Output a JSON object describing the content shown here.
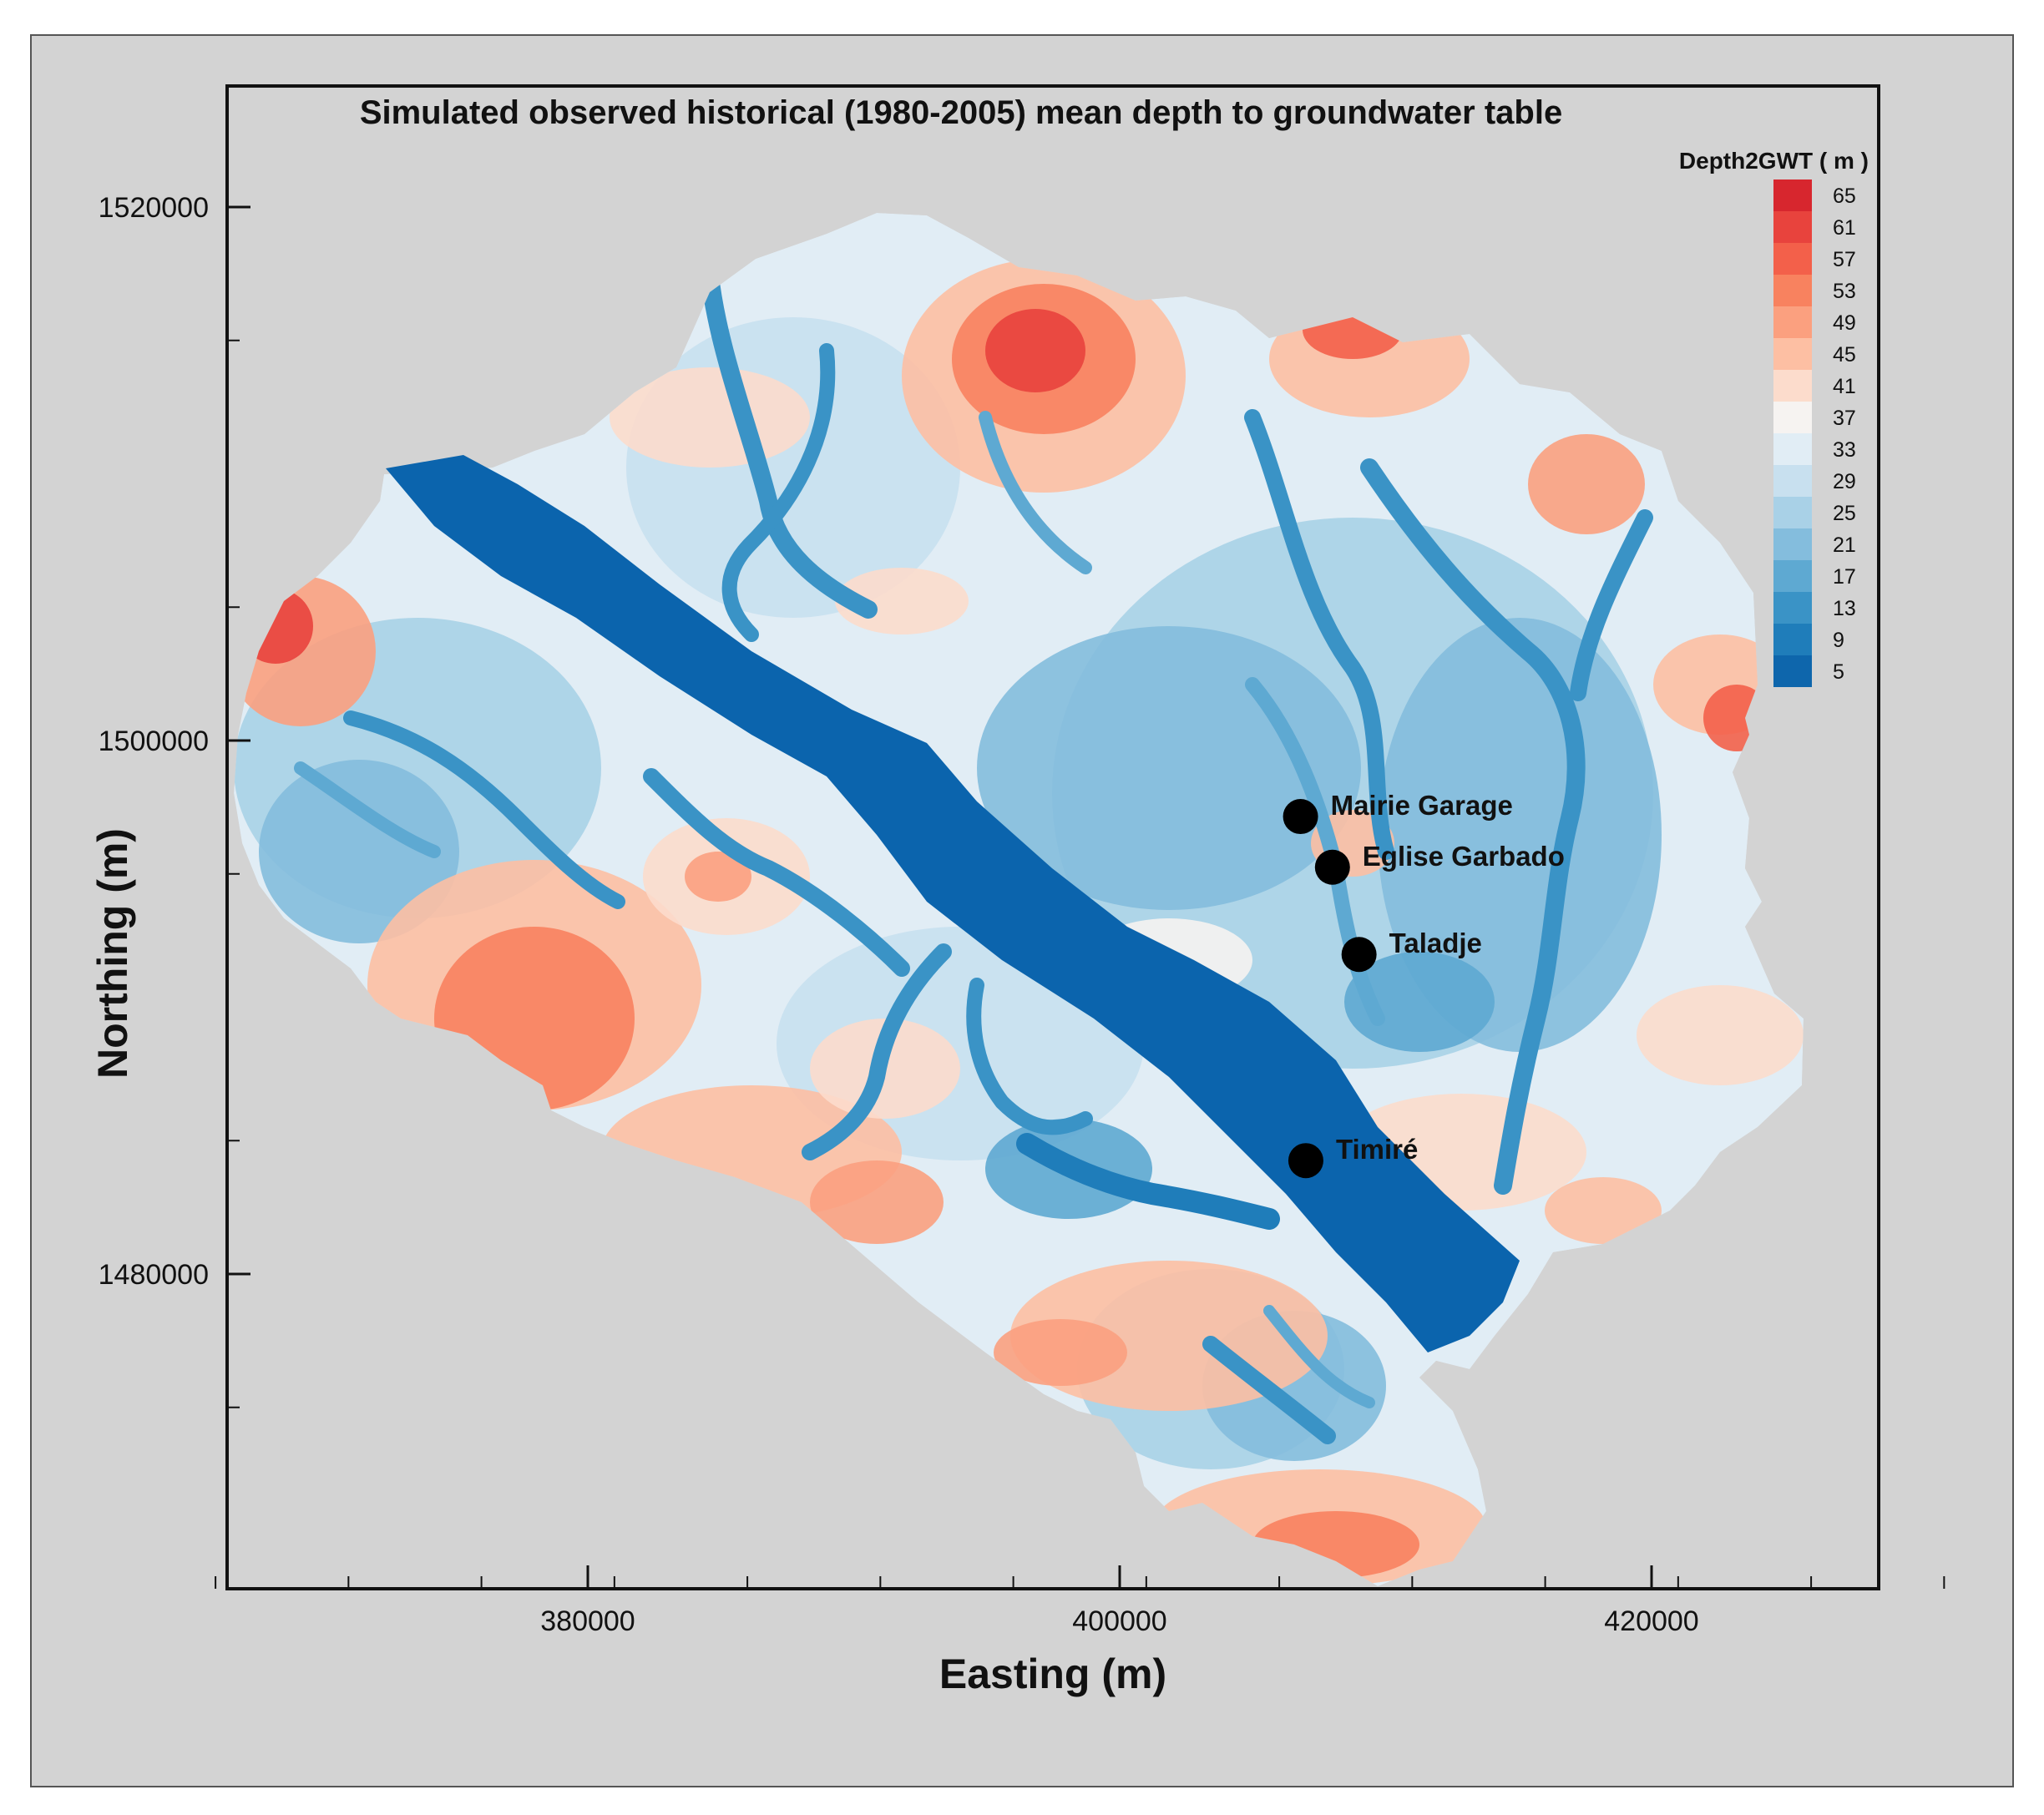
{
  "title": "Simulated observed historical (1980-2005) mean  depth to groundwater table",
  "x_axis": {
    "label": "Easting (m)",
    "ticks": [
      {
        "value": 380000,
        "label": "380000"
      },
      {
        "value": 400000,
        "label": "400000"
      },
      {
        "value": 420000,
        "label": "420000"
      }
    ]
  },
  "y_axis": {
    "label": "Northing (m)",
    "ticks": [
      {
        "value": 1520000,
        "label": "1520000"
      },
      {
        "value": 1500000,
        "label": "1500000"
      },
      {
        "value": 1480000,
        "label": "1480000"
      }
    ]
  },
  "legend": {
    "title": "Depth2GWT ( m )",
    "levels": [
      {
        "label": "65",
        "color": "#d7262e"
      },
      {
        "label": "61",
        "color": "#e8433d"
      },
      {
        "label": "57",
        "color": "#f3604a"
      },
      {
        "label": "53",
        "color": "#f8825f"
      },
      {
        "label": "49",
        "color": "#fba07f"
      },
      {
        "label": "45",
        "color": "#fdbfa3"
      },
      {
        "label": "41",
        "color": "#fcdccc"
      },
      {
        "label": "37",
        "color": "#f6f3f1"
      },
      {
        "label": "33",
        "color": "#e1edf5"
      },
      {
        "label": "29",
        "color": "#c8e0ef"
      },
      {
        "label": "25",
        "color": "#a9d1e7"
      },
      {
        "label": "21",
        "color": "#84bddd"
      },
      {
        "label": "17",
        "color": "#5ea9d2"
      },
      {
        "label": "13",
        "color": "#3a93c6"
      },
      {
        "label": "9",
        "color": "#1f7dba"
      },
      {
        "label": "5",
        "color": "#0e66ac"
      }
    ]
  },
  "sites": [
    {
      "name": "Mairie Garage",
      "easting": 406800,
      "northing": 1497150
    },
    {
      "name": "Eglise Garbado",
      "easting": 408000,
      "northing": 1495250
    },
    {
      "name": "Taladje",
      "easting": 409000,
      "northing": 1491980
    },
    {
      "name": "Timiré",
      "easting": 407000,
      "northing": 1484250
    }
  ],
  "colors": {
    "background": "#d3d3d3",
    "river": "#0b64ad",
    "marker": "#000000"
  }
}
